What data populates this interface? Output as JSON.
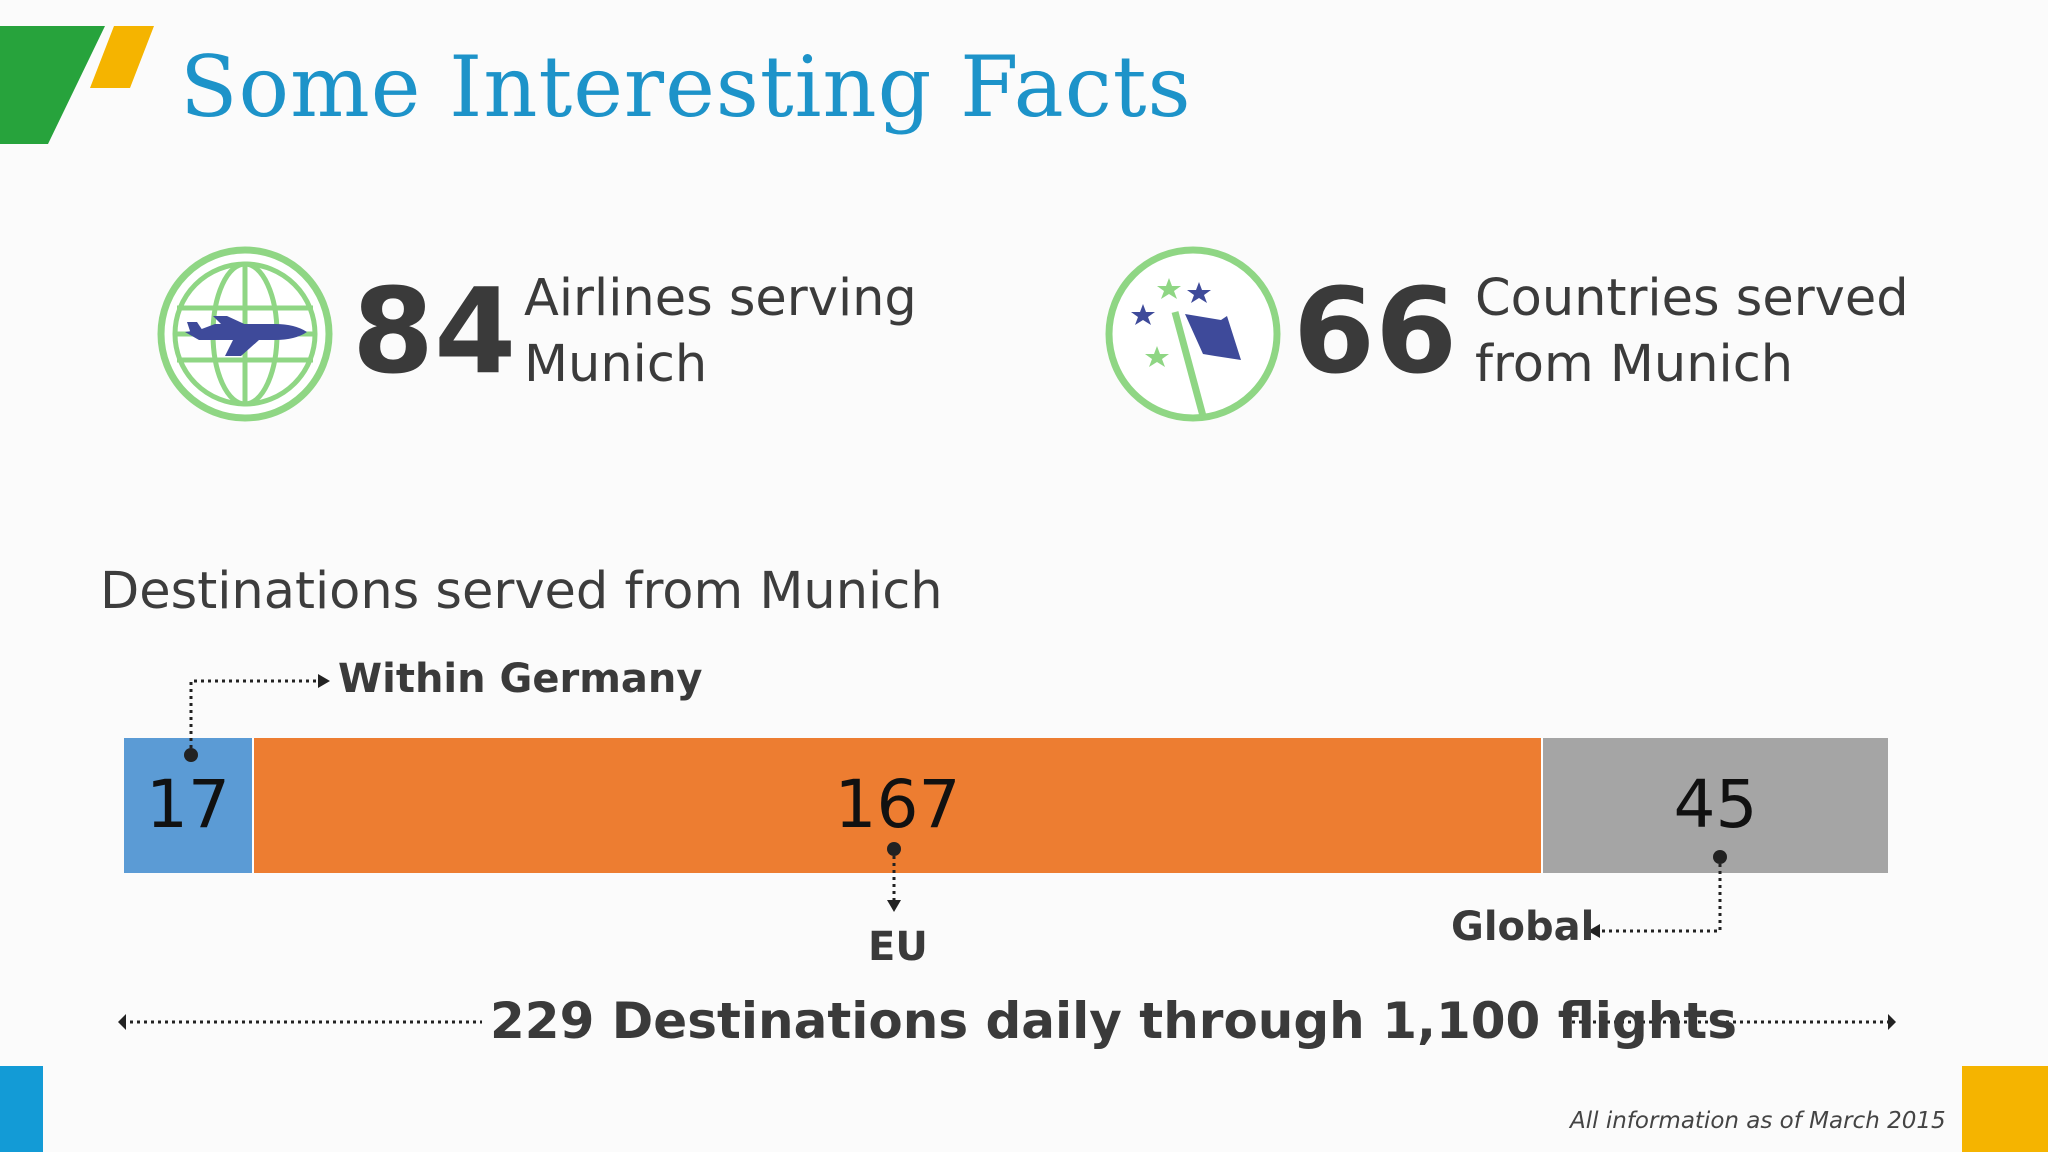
{
  "title": "Some Interesting Facts",
  "stats": [
    {
      "number": "84",
      "label_line1": "Airlines serving",
      "label_line2": "Munich",
      "icon": "globe-airplane-icon"
    },
    {
      "number": "66",
      "label_line1": "Countries served",
      "label_line2": "from Munich",
      "icon": "flag-stars-icon"
    }
  ],
  "destinations": {
    "heading": "Destinations served from Munich",
    "segments": [
      {
        "label": "Within Germany",
        "value": "17",
        "color": "#5b9bd5"
      },
      {
        "label": "EU",
        "value": "167",
        "color": "#ed7d31"
      },
      {
        "label": "Global",
        "value": "45",
        "color": "#a5a5a5"
      }
    ],
    "total_text": "229 Destinations daily through 1,100 flights"
  },
  "footnote": "All information as of March 2015",
  "colors": {
    "title": "#1d93c9",
    "icon_ring": "#8fd684",
    "icon_fill": "#3e4a9a",
    "corner_green": "#27a33c",
    "corner_yellow": "#f5b400",
    "corner_blue": "#139bd6"
  }
}
